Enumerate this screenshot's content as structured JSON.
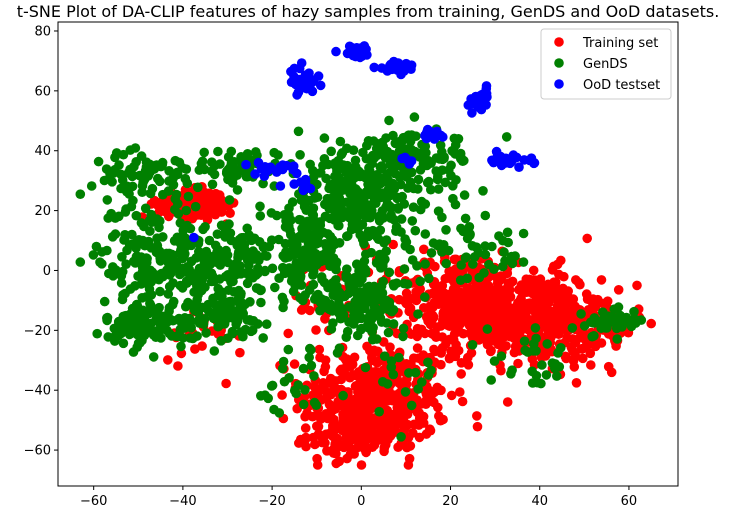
{
  "chart_data": {
    "type": "scatter",
    "title": "t-SNE Plot of DA-CLIP features of hazy samples from training, GenDS and OoD datasets.",
    "xlabel": "",
    "ylabel": "",
    "xlim": [
      -68,
      71
    ],
    "ylim": [
      -72,
      83
    ],
    "xticks": [
      -60,
      -40,
      -20,
      0,
      20,
      40,
      60
    ],
    "yticks": [
      -60,
      -40,
      -20,
      0,
      20,
      40,
      60,
      80
    ],
    "grid": false,
    "legend_position": "top-right",
    "series": [
      {
        "name": "Training set",
        "color": "#ff0000",
        "clusters": [
          {
            "cx": 3,
            "cy": -42,
            "sx": 11,
            "sy": 12,
            "n": 420
          },
          {
            "cx": 0,
            "cy": -55,
            "sx": 8,
            "sy": 5,
            "n": 120
          },
          {
            "cx": 37,
            "cy": -15,
            "sx": 11,
            "sy": 10,
            "n": 420
          },
          {
            "cx": 22,
            "cy": -10,
            "sx": 9,
            "sy": 11,
            "n": 280
          },
          {
            "cx": 52,
            "cy": -20,
            "sx": 7,
            "sy": 7,
            "n": 90
          },
          {
            "cx": -38,
            "cy": 22,
            "sx": 5,
            "sy": 3,
            "n": 190
          },
          {
            "cx": -3,
            "cy": -10,
            "sx": 9,
            "sy": 10,
            "n": 60
          },
          {
            "cx": -35,
            "cy": -20,
            "sx": 7,
            "sy": 6,
            "n": 25
          }
        ]
      },
      {
        "name": "GenDS",
        "color": "#008000",
        "clusters": [
          {
            "cx": -47,
            "cy": 5,
            "sx": 8,
            "sy": 12,
            "n": 170
          },
          {
            "cx": -30,
            "cy": 2,
            "sx": 7,
            "sy": 10,
            "n": 150
          },
          {
            "cx": -47,
            "cy": -18,
            "sx": 7,
            "sy": 5,
            "n": 110
          },
          {
            "cx": -30,
            "cy": -15,
            "sx": 6,
            "sy": 6,
            "n": 70
          },
          {
            "cx": -48,
            "cy": 32,
            "sx": 8,
            "sy": 5,
            "n": 70
          },
          {
            "cx": -27,
            "cy": 35,
            "sx": 7,
            "sy": 4,
            "n": 60
          },
          {
            "cx": 0,
            "cy": 25,
            "sx": 12,
            "sy": 12,
            "n": 330
          },
          {
            "cx": -12,
            "cy": 5,
            "sx": 7,
            "sy": 10,
            "n": 150
          },
          {
            "cx": 0,
            "cy": -10,
            "sx": 8,
            "sy": 8,
            "n": 150
          },
          {
            "cx": 12,
            "cy": 38,
            "sx": 9,
            "sy": 5,
            "n": 90
          },
          {
            "cx": 25,
            "cy": 5,
            "sx": 10,
            "sy": 6,
            "n": 50
          },
          {
            "cx": 56,
            "cy": -17,
            "sx": 5,
            "sy": 3,
            "n": 40
          },
          {
            "cx": -15,
            "cy": -40,
            "sx": 5,
            "sy": 10,
            "n": 25
          },
          {
            "cx": 40,
            "cy": -30,
            "sx": 8,
            "sy": 6,
            "n": 30
          },
          {
            "cx": 8,
            "cy": -35,
            "sx": 6,
            "sy": 8,
            "n": 20
          }
        ]
      },
      {
        "name": "OoD testset",
        "color": "#0000ff",
        "clusters": [
          {
            "cx": -1,
            "cy": 73,
            "sx": 2.5,
            "sy": 1.2,
            "n": 30
          },
          {
            "cx": 8,
            "cy": 68,
            "sx": 3,
            "sy": 1.3,
            "n": 30
          },
          {
            "cx": -13,
            "cy": 63,
            "sx": 2,
            "sy": 3,
            "n": 32
          },
          {
            "cx": 27,
            "cy": 57,
            "sx": 1.2,
            "sy": 2.5,
            "n": 22
          },
          {
            "cx": 33,
            "cy": 37,
            "sx": 4,
            "sy": 1.2,
            "n": 28
          },
          {
            "cx": 16,
            "cy": 45,
            "sx": 1.3,
            "sy": 1.5,
            "n": 16
          },
          {
            "cx": -19,
            "cy": 34,
            "sx": 4,
            "sy": 1.5,
            "n": 16
          },
          {
            "cx": -14,
            "cy": 29,
            "sx": 2,
            "sy": 1.3,
            "n": 8
          },
          {
            "cx": 10,
            "cy": 37,
            "sx": 1,
            "sy": 0.8,
            "n": 5
          },
          {
            "cx": -38,
            "cy": 11,
            "sx": 0.4,
            "sy": 0.3,
            "n": 1
          }
        ]
      }
    ]
  }
}
